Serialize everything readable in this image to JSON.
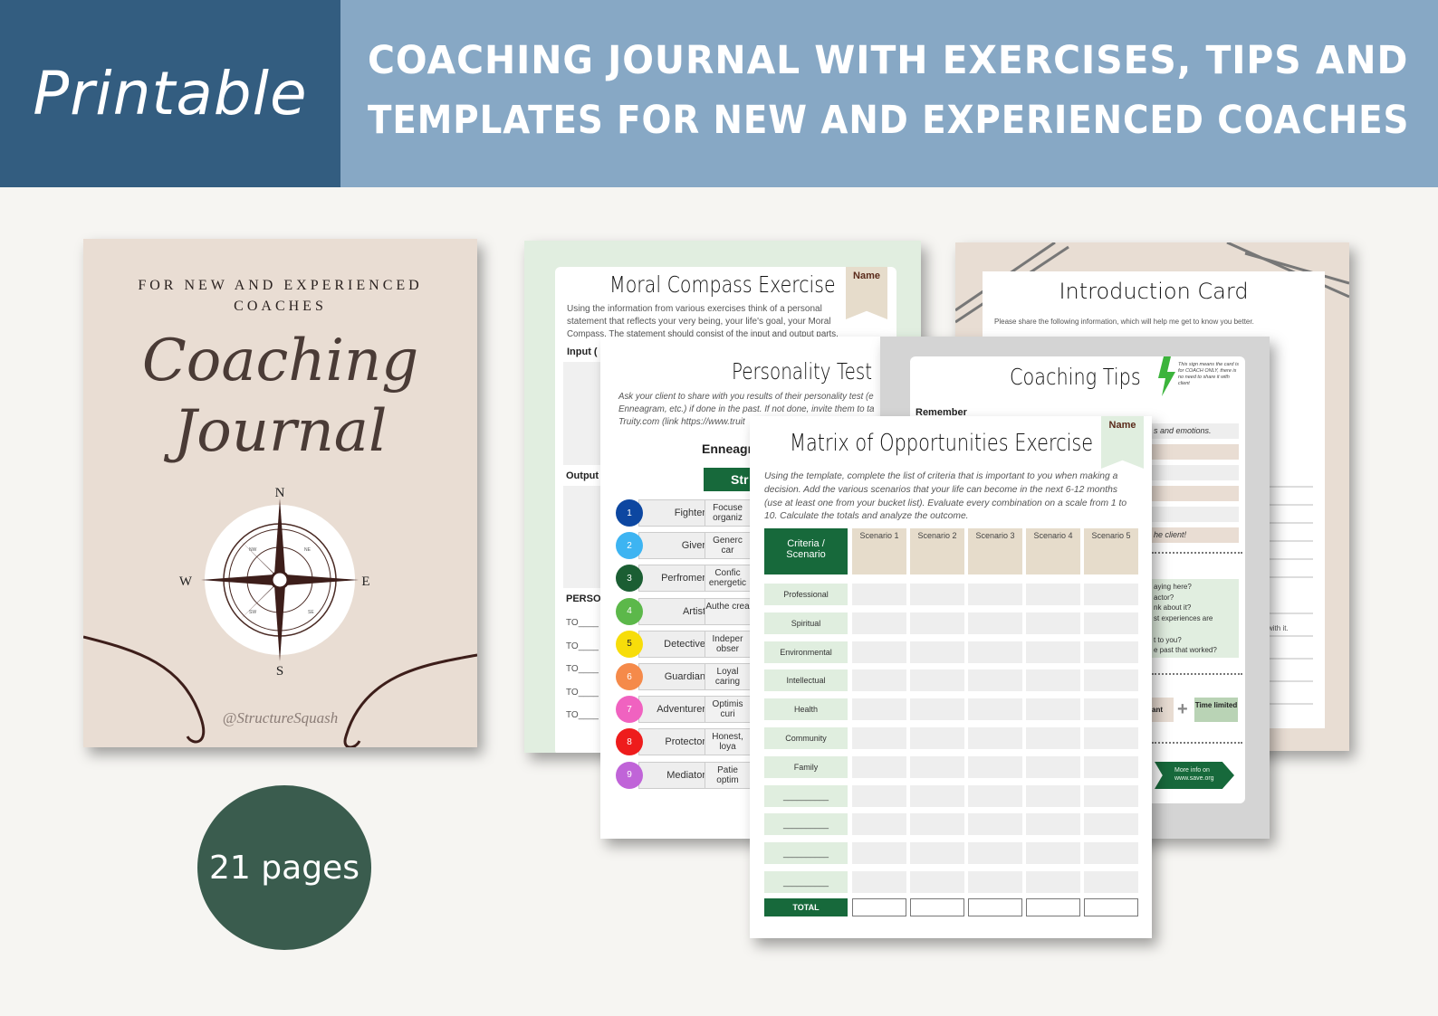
{
  "header": {
    "badge": "Printable",
    "headline_lines": [
      "Coaching journal with exercises, tips and",
      "templates for new and experienced coaches"
    ],
    "colors": {
      "left": "#335d80",
      "right": "#87a8c5"
    }
  },
  "cover": {
    "subtitle_lines": [
      "FOR NEW AND EXPERIENCED",
      "COACHES"
    ],
    "title_lines": [
      "Coaching",
      "Journal"
    ],
    "compass": {
      "n": "N",
      "e": "E",
      "s": "S",
      "w": "W",
      "ne": "NE",
      "nw": "NW",
      "se": "SE",
      "sw": "SW"
    },
    "handle": "@StructureSquash"
  },
  "page_count_badge": "21 pages",
  "intro_card": {
    "title": "Introduction Card",
    "text": "Please share the following information, which will help me get to know you better.",
    "fragment": "with it."
  },
  "moral_compass": {
    "title": "Moral Compass Exercise",
    "name_label": "Name",
    "text_lines": [
      "Using the information from various exercises think of a personal",
      "statement that reflects your very being, your life's goal, your Moral",
      "Compass. The statement should consist of the input and output parts."
    ],
    "input_label": "Input (",
    "output_label": "Output",
    "person_label": "PERSON",
    "to_items": [
      "TO",
      "TO",
      "TO",
      "TO",
      "TO"
    ]
  },
  "personality_test": {
    "title": "Personality Test",
    "text_lines": [
      "Ask your client to share with you results of their personality test (e",
      "Enneagram, etc.) if done in the past. If not done, invite them to ta",
      "Truity.com (link https://www.truit"
    ],
    "section_label": "Enneagr",
    "strengths_header": "Str",
    "types": [
      {
        "num": "1",
        "name": "Fighter",
        "color": "#0d47a1",
        "strength": "Focuse organiz"
      },
      {
        "num": "2",
        "name": "Giver",
        "color": "#3db4f2",
        "strength": "Generc car"
      },
      {
        "num": "3",
        "name": "Perfromer",
        "color": "#1b5e33",
        "strength": "Confic energetic"
      },
      {
        "num": "4",
        "name": "Artist",
        "color": "#5cb84a",
        "strength": "Authe crea"
      },
      {
        "num": "5",
        "name": "Detective",
        "color": "#f7dd0a",
        "strength": "Indeper obser"
      },
      {
        "num": "6",
        "name": "Guardian",
        "color": "#f58a4a",
        "strength": "Loyal caring"
      },
      {
        "num": "7",
        "name": "Adventurer",
        "color": "#f062c0",
        "strength": "Optimis curi"
      },
      {
        "num": "8",
        "name": "Protector",
        "color": "#ee1c1c",
        "strength": "Honest, loya"
      },
      {
        "num": "9",
        "name": "Mediator",
        "color": "#c064d8",
        "strength": "Patie optim"
      }
    ]
  },
  "coaching_tips": {
    "title": "Coaching Tips",
    "note": "This sign means the card is for COACH ONLY, there is no need to share it with client",
    "remember_label": "Remember",
    "bar_texts": [
      "s and emotions.",
      "",
      "",
      "",
      "",
      "he client!"
    ],
    "question_fragments": [
      "aying here?",
      "actor?",
      "nk about it?",
      "st experiences are",
      "",
      "t to you?",
      "e past that worked?"
    ],
    "formula_left": "ant",
    "formula_right": "Time limited",
    "more_info": "More info on www.save.org"
  },
  "matrix": {
    "title": "Matrix of Opportunities Exercise",
    "name_label": "Name",
    "text_lines": [
      "Using the template, complete the list of criteria that is important to you when making a",
      "decision. Add the various scenarios that your life can become in the next 6-12 months",
      "(use at least one from your bucket list). Evaluate every combination on a scale from 1 to",
      "10. Calculate the totals and analyze the outcome."
    ],
    "corner_header": "Criteria / Scenario",
    "scenarios": [
      "Scenario 1",
      "Scenario 2",
      "Scenario 3",
      "Scenario 4",
      "Scenario 5"
    ],
    "criteria": [
      "Professional",
      "Spiritual",
      "Environmental",
      "Intellectual",
      "Health",
      "Community",
      "Family",
      "__________",
      "__________",
      "__________",
      "__________"
    ],
    "total_label": "TOTAL",
    "accent": "#17693b"
  }
}
